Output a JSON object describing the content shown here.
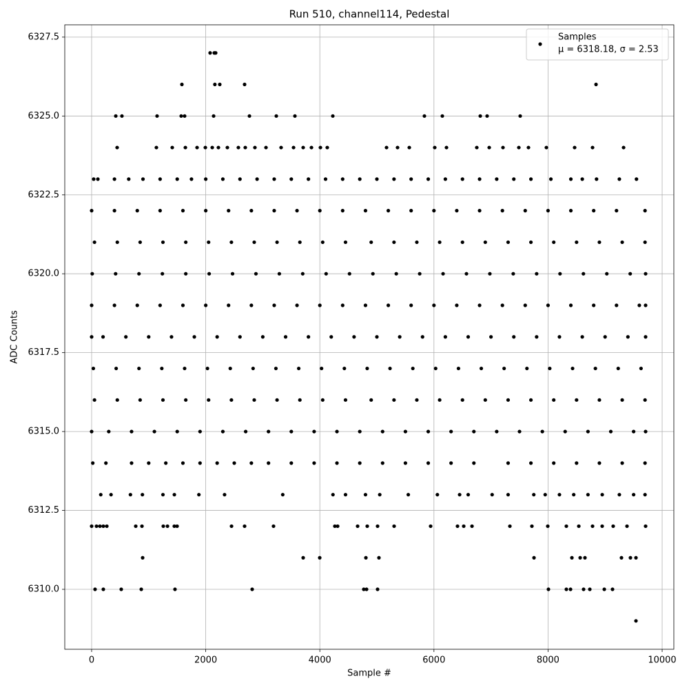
{
  "chart_data": {
    "type": "scatter",
    "title": "Run 510, channel114, Pedestal",
    "xlabel": "Sample #",
    "ylabel": "ADC Counts",
    "xlim": [
      -471,
      10205
    ],
    "ylim": [
      6308.1,
      6327.89
    ],
    "xticks": [
      0,
      2000,
      4000,
      6000,
      8000,
      10000
    ],
    "yticks": [
      {
        "value": 6310,
        "label": "6310.0"
      },
      6312.5,
      {
        "value": 6315,
        "label": "6315.0"
      },
      6317.5,
      {
        "value": 6320,
        "label": "6320.0"
      },
      6322.5,
      {
        "value": 6325,
        "label": "6325.0"
      },
      6327.5
    ],
    "grid": true,
    "legend": "upper right",
    "legend_note": "μ = 6318.18, σ = 2.53",
    "x": [
      2077,
      2150,
      2174,
      1582,
      2160,
      2246,
      2681,
      8841,
      423,
      531,
      1147,
      1570,
      1630,
      2138,
      2766,
      3237,
      3563,
      4227,
      5833,
      6147,
      6812,
      6932,
      7512,
      447,
      1135,
      1413,
      1643,
      1848,
      1993,
      2114,
      2222,
      2379,
      2572,
      2693,
      2862,
      3056,
      3321,
      3539,
      3708,
      3853,
      4010,
      4130,
      5169,
      5362,
      5568,
      6014,
      6220,
      6751,
      6969,
      7210,
      7488,
      7657,
      7971,
      8466,
      8780,
      9324,
      36,
      109,
      400,
      650,
      900,
      1200,
      1500,
      1750,
      2000,
      2300,
      2600,
      2900,
      3200,
      3500,
      3800,
      4100,
      4400,
      4700,
      5000,
      5300,
      5600,
      5900,
      6200,
      6500,
      6800,
      7100,
      7400,
      7700,
      8050,
      8400,
      8600,
      8850,
      9250,
      9550,
      0,
      400,
      800,
      1200,
      1600,
      2000,
      2400,
      2800,
      3200,
      3600,
      4000,
      4400,
      4800,
      5200,
      5600,
      6000,
      6400,
      6800,
      7200,
      7600,
      8000,
      8400,
      8800,
      9200,
      9700,
      50,
      450,
      850,
      1250,
      1650,
      2050,
      2450,
      2850,
      3250,
      3650,
      4050,
      4450,
      4900,
      5300,
      5700,
      6100,
      6500,
      6900,
      7300,
      7700,
      8100,
      8500,
      8900,
      9300,
      9700,
      10,
      420,
      830,
      1240,
      1650,
      2060,
      2470,
      2880,
      3290,
      3700,
      4110,
      4520,
      4930,
      5340,
      5750,
      6160,
      6570,
      6980,
      7390,
      7800,
      8210,
      8620,
      9030,
      9440,
      9710,
      0,
      400,
      800,
      1200,
      1600,
      2000,
      2400,
      2800,
      3200,
      3600,
      4000,
      4400,
      4800,
      5200,
      5600,
      6000,
      6400,
      6800,
      7200,
      7600,
      8000,
      8400,
      8800,
      9200,
      9600,
      9710,
      0,
      200,
      600,
      1000,
      1400,
      1800,
      2200,
      2600,
      3000,
      3400,
      3800,
      4200,
      4600,
      5000,
      5400,
      5800,
      6200,
      6600,
      7000,
      7400,
      7800,
      8200,
      8600,
      9000,
      9400,
      9710,
      30,
      430,
      830,
      1230,
      1630,
      2030,
      2430,
      2830,
      3230,
      3630,
      4030,
      4430,
      4830,
      5230,
      5630,
      6030,
      6430,
      6830,
      7230,
      7630,
      8030,
      8430,
      8830,
      9230,
      9630,
      50,
      450,
      850,
      1250,
      1650,
      2050,
      2450,
      2850,
      3250,
      3650,
      4050,
      4450,
      4900,
      5300,
      5700,
      6100,
      6500,
      6900,
      7300,
      7700,
      8100,
      8500,
      8900,
      9300,
      9700,
      0,
      300,
      700,
      1100,
      1500,
      1900,
      2300,
      2700,
      3100,
      3500,
      3900,
      4300,
      4700,
      5100,
      5500,
      5900,
      6300,
      6700,
      7100,
      7500,
      7900,
      8300,
      8700,
      9100,
      9500,
      9710,
      20,
      250,
      700,
      1000,
      1300,
      1600,
      1900,
      2200,
      2500,
      2800,
      3100,
      3500,
      3900,
      4300,
      4700,
      5100,
      5500,
      5900,
      6300,
      6700,
      7300,
      7700,
      8100,
      8500,
      8900,
      9300,
      9700,
      160,
      340,
      680,
      890,
      1250,
      1450,
      1880,
      2330,
      3350,
      4230,
      4450,
      4800,
      5050,
      5550,
      6060,
      6450,
      6600,
      7020,
      7300,
      7750,
      7950,
      8200,
      8450,
      8700,
      8950,
      9250,
      9500,
      9700,
      0,
      85,
      145,
      205,
      266,
      773,
      882,
      1256,
      1329,
      1449,
      1498,
      2452,
      2681,
      3188,
      4263,
      4312,
      4662,
      4831,
      5012,
      5302,
      5942,
      6413,
      6522,
      6667,
      7331,
      7717,
      7995,
      8321,
      8539,
      8780,
      8949,
      9142,
      9384,
      9710,
      894,
      3708,
      3998,
      4807,
      5036,
      7754,
      8418,
      8563,
      8647,
      9287,
      9444,
      9541,
      60,
      205,
      519,
      870,
      1461,
      2814,
      4770,
      4819,
      5012,
      8007,
      8321,
      8394,
      8623,
      8732,
      8986,
      9130,
      9541
    ],
    "series": [
      {
        "name": "Samples",
        "color": "#000000",
        "values": [
          6327,
          6327,
          6327,
          6326,
          6326,
          6326,
          6326,
          6326,
          6325,
          6325,
          6325,
          6325,
          6325,
          6325,
          6325,
          6325,
          6325,
          6325,
          6325,
          6325,
          6325,
          6325,
          6325,
          6324,
          6324,
          6324,
          6324,
          6324,
          6324,
          6324,
          6324,
          6324,
          6324,
          6324,
          6324,
          6324,
          6324,
          6324,
          6324,
          6324,
          6324,
          6324,
          6324,
          6324,
          6324,
          6324,
          6324,
          6324,
          6324,
          6324,
          6324,
          6324,
          6324,
          6324,
          6324,
          6324,
          6323,
          6323,
          6323,
          6323,
          6323,
          6323,
          6323,
          6323,
          6323,
          6323,
          6323,
          6323,
          6323,
          6323,
          6323,
          6323,
          6323,
          6323,
          6323,
          6323,
          6323,
          6323,
          6323,
          6323,
          6323,
          6323,
          6323,
          6323,
          6323,
          6323,
          6323,
          6323,
          6323,
          6323,
          6322,
          6322,
          6322,
          6322,
          6322,
          6322,
          6322,
          6322,
          6322,
          6322,
          6322,
          6322,
          6322,
          6322,
          6322,
          6322,
          6322,
          6322,
          6322,
          6322,
          6322,
          6322,
          6322,
          6322,
          6322,
          6321,
          6321,
          6321,
          6321,
          6321,
          6321,
          6321,
          6321,
          6321,
          6321,
          6321,
          6321,
          6321,
          6321,
          6321,
          6321,
          6321,
          6321,
          6321,
          6321,
          6321,
          6321,
          6321,
          6321,
          6321,
          6320,
          6320,
          6320,
          6320,
          6320,
          6320,
          6320,
          6320,
          6320,
          6320,
          6320,
          6320,
          6320,
          6320,
          6320,
          6320,
          6320,
          6320,
          6320,
          6320,
          6320,
          6320,
          6320,
          6320,
          6320,
          6319,
          6319,
          6319,
          6319,
          6319,
          6319,
          6319,
          6319,
          6319,
          6319,
          6319,
          6319,
          6319,
          6319,
          6319,
          6319,
          6319,
          6319,
          6319,
          6319,
          6319,
          6319,
          6319,
          6319,
          6319,
          6319,
          6318,
          6318,
          6318,
          6318,
          6318,
          6318,
          6318,
          6318,
          6318,
          6318,
          6318,
          6318,
          6318,
          6318,
          6318,
          6318,
          6318,
          6318,
          6318,
          6318,
          6318,
          6318,
          6318,
          6318,
          6318,
          6318,
          6317,
          6317,
          6317,
          6317,
          6317,
          6317,
          6317,
          6317,
          6317,
          6317,
          6317,
          6317,
          6317,
          6317,
          6317,
          6317,
          6317,
          6317,
          6317,
          6317,
          6317,
          6317,
          6317,
          6317,
          6317,
          6316,
          6316,
          6316,
          6316,
          6316,
          6316,
          6316,
          6316,
          6316,
          6316,
          6316,
          6316,
          6316,
          6316,
          6316,
          6316,
          6316,
          6316,
          6316,
          6316,
          6316,
          6316,
          6316,
          6316,
          6316,
          6315,
          6315,
          6315,
          6315,
          6315,
          6315,
          6315,
          6315,
          6315,
          6315,
          6315,
          6315,
          6315,
          6315,
          6315,
          6315,
          6315,
          6315,
          6315,
          6315,
          6315,
          6315,
          6315,
          6315,
          6315,
          6315,
          6314,
          6314,
          6314,
          6314,
          6314,
          6314,
          6314,
          6314,
          6314,
          6314,
          6314,
          6314,
          6314,
          6314,
          6314,
          6314,
          6314,
          6314,
          6314,
          6314,
          6314,
          6314,
          6314,
          6314,
          6314,
          6314,
          6314,
          6313,
          6313,
          6313,
          6313,
          6313,
          6313,
          6313,
          6313,
          6313,
          6313,
          6313,
          6313,
          6313,
          6313,
          6313,
          6313,
          6313,
          6313,
          6313,
          6313,
          6313,
          6313,
          6313,
          6313,
          6313,
          6313,
          6313,
          6313,
          6312,
          6312,
          6312,
          6312,
          6312,
          6312,
          6312,
          6312,
          6312,
          6312,
          6312,
          6312,
          6312,
          6312,
          6312,
          6312,
          6312,
          6312,
          6312,
          6312,
          6312,
          6312,
          6312,
          6312,
          6312,
          6312,
          6312,
          6312,
          6312,
          6312,
          6312,
          6312,
          6312,
          6312,
          6311,
          6311,
          6311,
          6311,
          6311,
          6311,
          6311,
          6311,
          6311,
          6311,
          6311,
          6311,
          6310,
          6310,
          6310,
          6310,
          6310,
          6310,
          6310,
          6310,
          6310,
          6310,
          6310,
          6310,
          6310,
          6310,
          6310,
          6310,
          6309
        ]
      }
    ]
  }
}
